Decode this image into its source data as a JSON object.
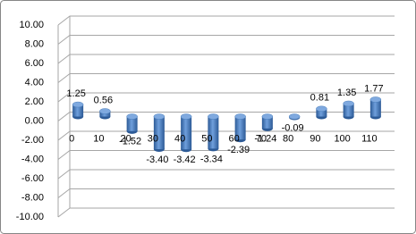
{
  "chart_data": {
    "type": "bar3d",
    "categories": [
      "0",
      "10",
      "20",
      "30",
      "40",
      "50",
      "60",
      "70",
      "80",
      "90",
      "100",
      "110"
    ],
    "values": [
      1.25,
      0.56,
      -1.52,
      -3.4,
      -3.42,
      -3.34,
      -2.39,
      -1.24,
      -0.09,
      0.81,
      1.35,
      1.77
    ],
    "value_labels": [
      "1.25",
      "0.56",
      "-1.52",
      "-3.40",
      "-3.42",
      "-3.34",
      "-2.39",
      "-1.24",
      "-0.09",
      "0.81",
      "1.35",
      "1.77"
    ],
    "color": "#4a7ebb",
    "ylim": [
      -10,
      10
    ],
    "yticks": [
      {
        "value": -10,
        "label": "-10.00"
      },
      {
        "value": -8,
        "label": "-8.00"
      },
      {
        "value": -6,
        "label": "-6.00"
      },
      {
        "value": -4,
        "label": "-4.00"
      },
      {
        "value": -2,
        "label": "-2.00"
      },
      {
        "value": 0,
        "label": "0.00"
      },
      {
        "value": 2,
        "label": "2.00"
      },
      {
        "value": 4,
        "label": "4.00"
      },
      {
        "value": 6,
        "label": "6.00"
      },
      {
        "value": 8,
        "label": "8.00"
      },
      {
        "value": 10,
        "label": "10.00"
      }
    ],
    "grid": true
  }
}
